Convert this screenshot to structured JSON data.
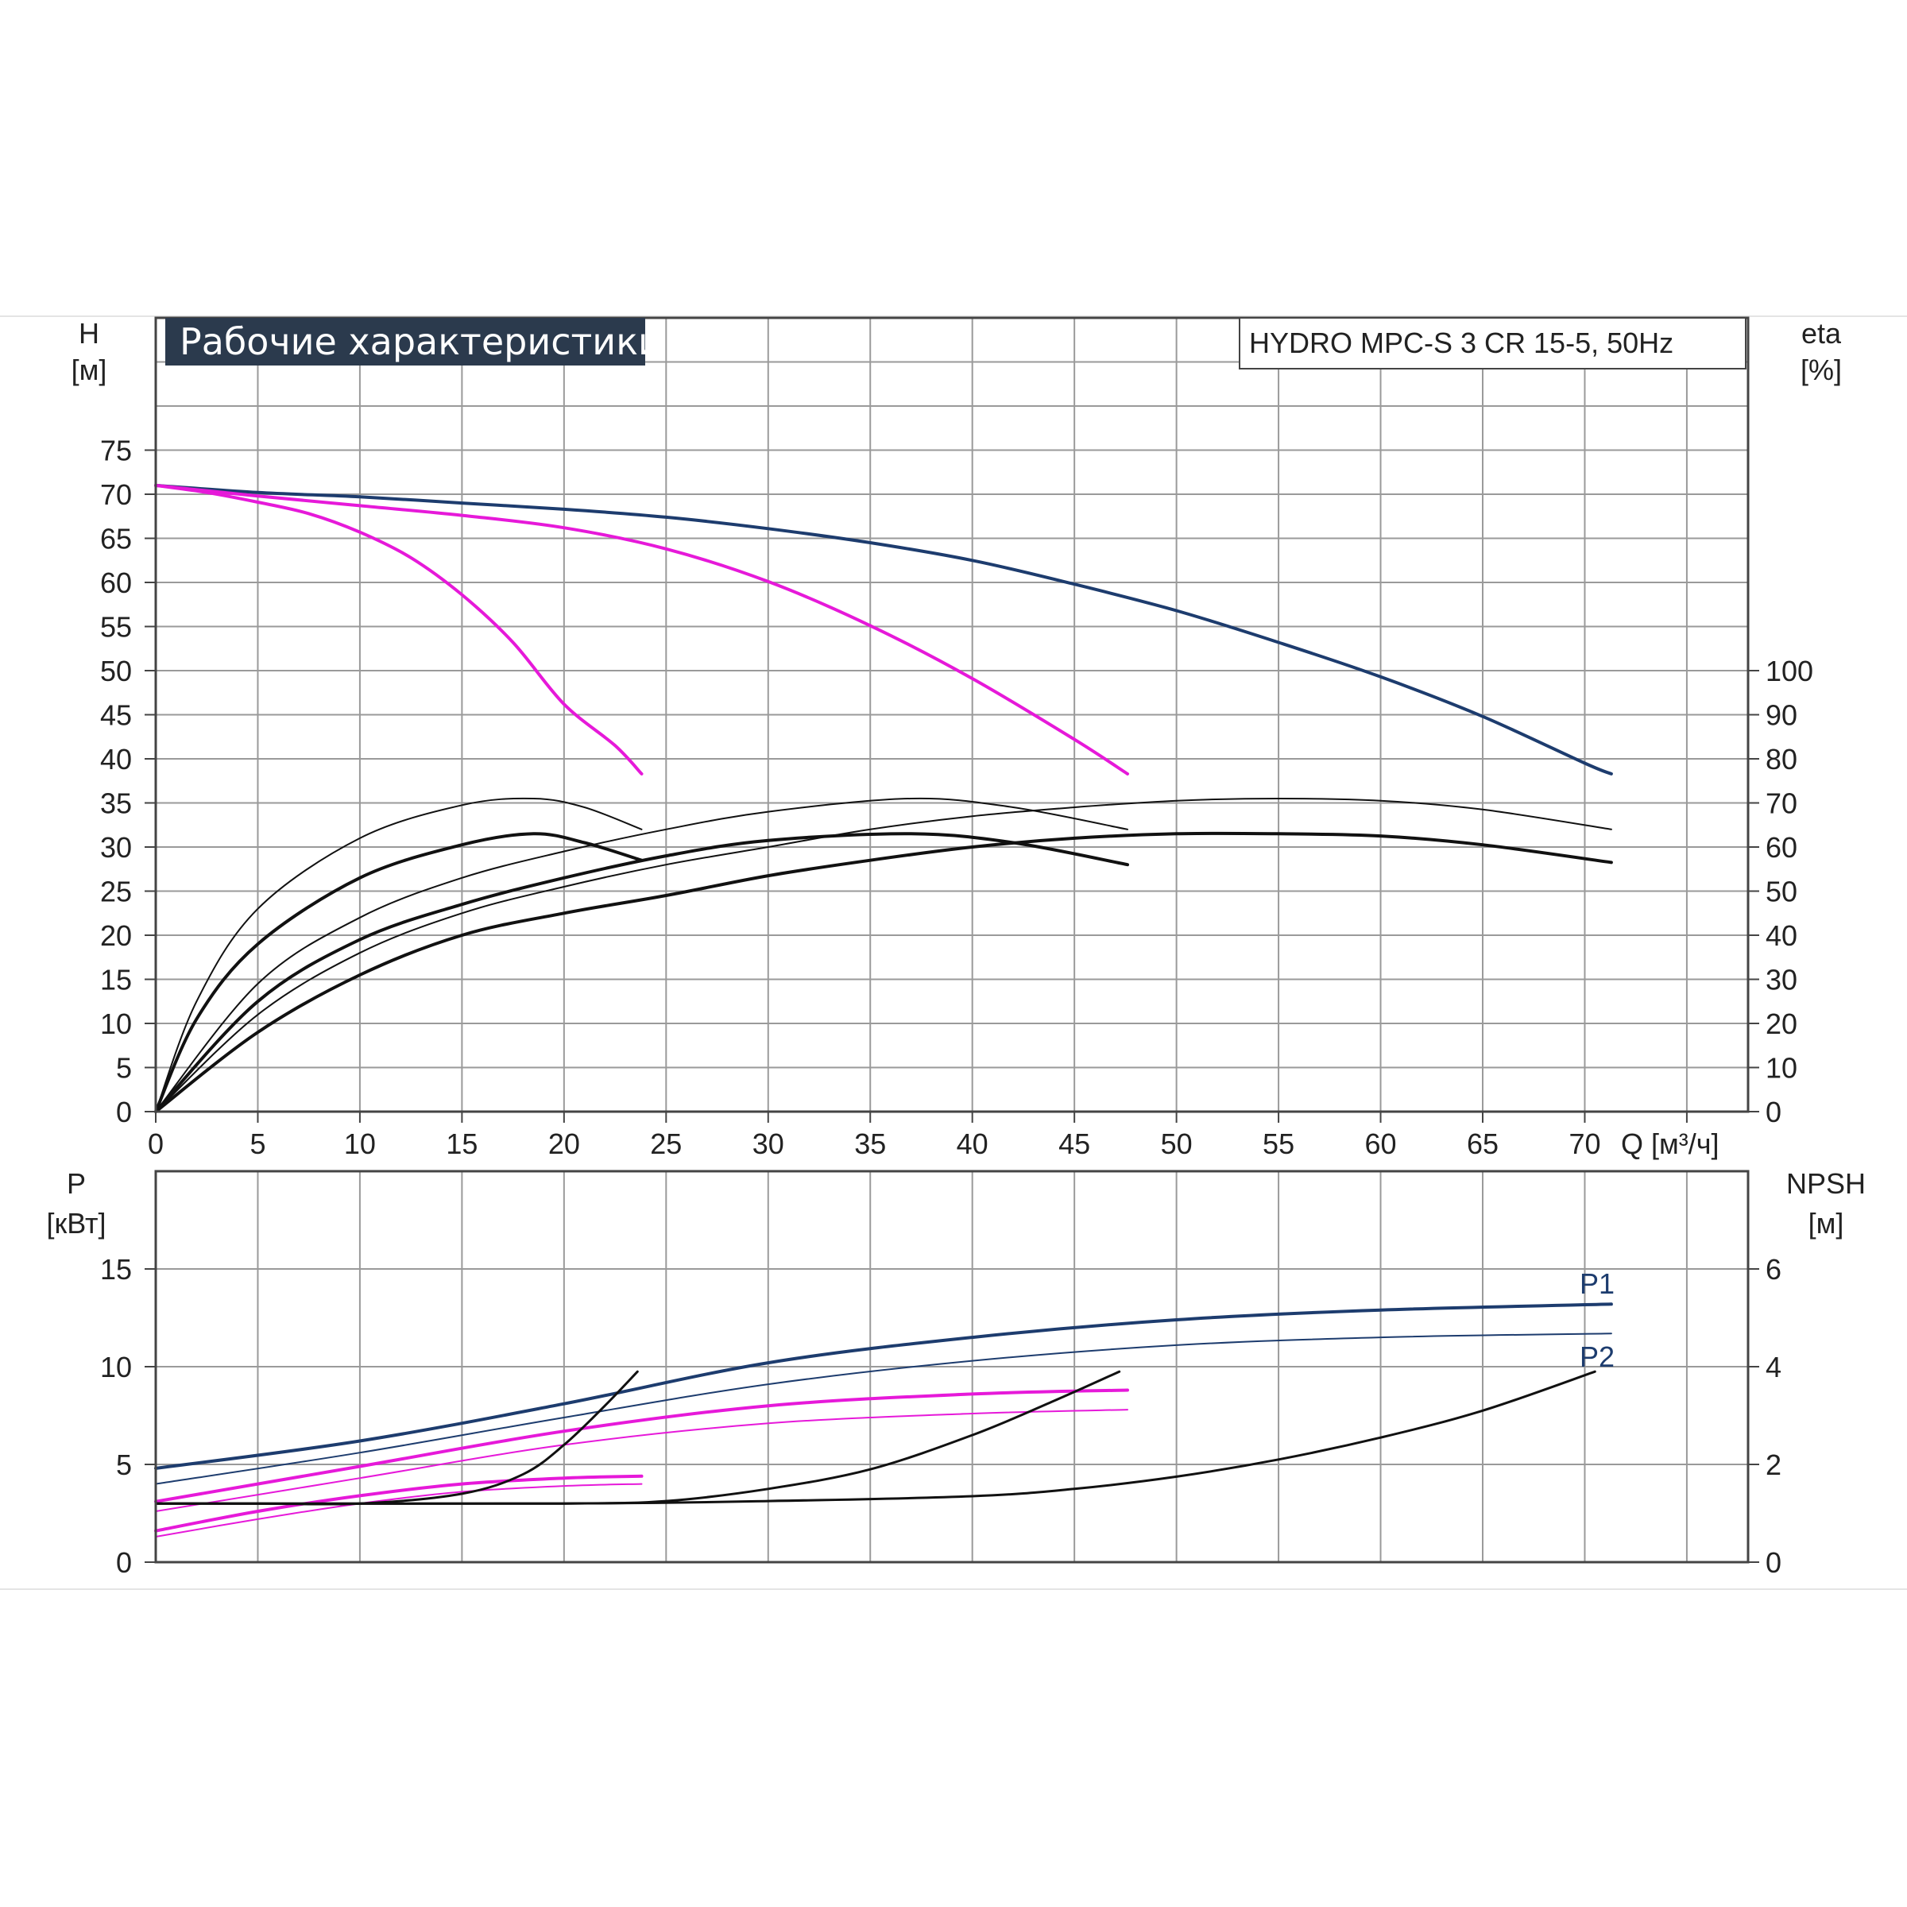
{
  "chart_data": {
    "type": "line",
    "title": "Рабочие характеристики",
    "model": "HYDRO MPC-S 3 CR 15-5, 50Hz",
    "colors": {
      "blue": "#1d3c6e",
      "magenta": "#e619d9",
      "black": "#111111",
      "grid": "#9a9a9a"
    },
    "x_axis": {
      "label": "Q [м³/ч]",
      "range": [
        0,
        78
      ],
      "ticks": [
        0,
        5,
        10,
        15,
        20,
        25,
        30,
        35,
        40,
        45,
        50,
        55,
        60,
        65,
        70
      ]
    },
    "top_panel": {
      "left_axis": {
        "label_line1": "H",
        "label_line2": "[м]",
        "range": [
          0,
          90
        ],
        "ticks": [
          0,
          5,
          10,
          15,
          20,
          25,
          30,
          35,
          40,
          45,
          50,
          55,
          60,
          65,
          70,
          75
        ]
      },
      "right_axis": {
        "label_line1": "eta",
        "label_line2": "[%]",
        "range": [
          0,
          180
        ],
        "ticks": [
          0,
          10,
          20,
          30,
          40,
          50,
          60,
          70,
          80,
          90,
          100
        ]
      },
      "series": [
        {
          "kind": "head",
          "color": "blue",
          "width": 4,
          "x": [
            0,
            5,
            10,
            15,
            20,
            25,
            30,
            35,
            40,
            45,
            50,
            55,
            60,
            65,
            70,
            71.3
          ],
          "y": [
            71,
            70.2,
            69.7,
            69,
            68.3,
            67.4,
            66.1,
            64.5,
            62.5,
            59.8,
            56.8,
            53.2,
            49.3,
            44.8,
            39.5,
            38.3
          ]
        },
        {
          "kind": "head",
          "color": "magenta",
          "width": 4,
          "x": [
            0,
            5,
            10,
            15,
            20,
            25,
            30,
            35,
            40,
            45,
            47.6
          ],
          "y": [
            71,
            69.8,
            68.7,
            67.6,
            66.2,
            63.8,
            60.1,
            55.1,
            49.1,
            42.2,
            38.3
          ]
        },
        {
          "kind": "head",
          "color": "magenta",
          "width": 4,
          "x": [
            0,
            2.5,
            5,
            7.5,
            10,
            12.5,
            15,
            17.5,
            20,
            22.5,
            23.8
          ],
          "y": [
            71,
            70.2,
            69.1,
            67.8,
            65.7,
            62.8,
            58.6,
            53.2,
            46.2,
            41.5,
            38.3
          ]
        },
        {
          "kind": "eta",
          "color": "black",
          "width": 2,
          "x": [
            0,
            2,
            5,
            10,
            15,
            18.5,
            21,
            23.8
          ],
          "y": [
            0,
            25,
            46,
            62,
            69.5,
            71,
            69,
            64
          ]
        },
        {
          "kind": "eta",
          "color": "black",
          "width": 4,
          "x": [
            0,
            2,
            5,
            10,
            15,
            18.5,
            21,
            23.8
          ],
          "y": [
            0,
            21,
            38,
            53,
            60.5,
            63,
            61,
            57
          ]
        },
        {
          "kind": "eta",
          "color": "black",
          "width": 2,
          "x": [
            0,
            5,
            10,
            15,
            20,
            25,
            30,
            37,
            42,
            47.6
          ],
          "y": [
            0,
            29,
            44,
            53,
            59,
            64,
            68,
            71,
            69,
            64
          ]
        },
        {
          "kind": "eta",
          "color": "black",
          "width": 4,
          "x": [
            0,
            5,
            10,
            15,
            20,
            25,
            30,
            37,
            42,
            47.6
          ],
          "y": [
            0,
            25,
            39,
            47,
            53,
            58,
            61.5,
            63,
            61,
            56
          ]
        },
        {
          "kind": "eta",
          "color": "black",
          "width": 2,
          "x": [
            0,
            5,
            10,
            15,
            20,
            25,
            30,
            35,
            40,
            45,
            50,
            55,
            60,
            65,
            71.3
          ],
          "y": [
            0,
            22,
            36,
            45,
            51,
            56,
            60,
            64,
            67,
            69,
            70.5,
            71,
            70.5,
            68.5,
            64
          ]
        },
        {
          "kind": "eta",
          "color": "black",
          "width": 4,
          "x": [
            0,
            5,
            10,
            15,
            20,
            25,
            30,
            35,
            40,
            45,
            50,
            55,
            60,
            65,
            71.3
          ],
          "y": [
            0,
            18,
            31,
            40,
            45,
            49,
            53.5,
            57,
            60,
            62,
            63,
            63,
            62.5,
            60.5,
            56.5
          ]
        }
      ]
    },
    "bottom_panel": {
      "left_axis": {
        "label_line1": "P",
        "label_line2": "[кВт]",
        "range": [
          0,
          20
        ],
        "ticks": [
          0,
          5,
          10,
          15
        ]
      },
      "right_axis": {
        "label_line1": "NPSH",
        "label_line2": "[м]",
        "range": [
          0,
          8
        ],
        "ticks": [
          0,
          2,
          4,
          6
        ]
      },
      "labels": [
        "P1",
        "P2"
      ],
      "series": [
        {
          "kind": "P1",
          "color": "blue",
          "width": 4,
          "x": [
            0,
            10,
            20,
            30,
            40,
            50,
            60,
            71.3
          ],
          "y": [
            4.8,
            6.2,
            8.1,
            10.2,
            11.5,
            12.4,
            12.9,
            13.2
          ]
        },
        {
          "kind": "P2",
          "color": "blue",
          "width": 2,
          "x": [
            0,
            10,
            20,
            30,
            40,
            50,
            60,
            71.3
          ],
          "y": [
            4.0,
            5.6,
            7.4,
            9.1,
            10.3,
            11.1,
            11.5,
            11.7
          ]
        },
        {
          "kind": "P1",
          "color": "magenta",
          "width": 4,
          "x": [
            0,
            10,
            20,
            30,
            40,
            47.6
          ],
          "y": [
            3.1,
            4.9,
            6.7,
            8.0,
            8.6,
            8.8
          ]
        },
        {
          "kind": "P2",
          "color": "magenta",
          "width": 2,
          "x": [
            0,
            10,
            20,
            30,
            40,
            47.6
          ],
          "y": [
            2.6,
            4.3,
            6.0,
            7.1,
            7.6,
            7.8
          ]
        },
        {
          "kind": "P1",
          "color": "magenta",
          "width": 4,
          "x": [
            0,
            5,
            10,
            15,
            20,
            23.8
          ],
          "y": [
            1.6,
            2.6,
            3.4,
            4.0,
            4.3,
            4.4
          ]
        },
        {
          "kind": "P2",
          "color": "magenta",
          "width": 2,
          "x": [
            0,
            5,
            10,
            15,
            20,
            23.8
          ],
          "y": [
            1.3,
            2.2,
            3.0,
            3.6,
            3.9,
            4.0
          ]
        },
        {
          "kind": "NPSH",
          "color": "black",
          "width": 3,
          "x": [
            0,
            5,
            10,
            15,
            18,
            20,
            22,
            23.6
          ],
          "y": [
            1.2,
            1.2,
            1.2,
            1.4,
            1.8,
            2.4,
            3.2,
            3.9
          ]
        },
        {
          "kind": "NPSH",
          "color": "black",
          "width": 3,
          "x": [
            0,
            10,
            20,
            25,
            30,
            35,
            40,
            44,
            47.2
          ],
          "y": [
            1.2,
            1.2,
            1.2,
            1.25,
            1.5,
            1.9,
            2.6,
            3.3,
            3.9
          ]
        },
        {
          "kind": "NPSH",
          "color": "black",
          "width": 3,
          "x": [
            0,
            20,
            30,
            40,
            45,
            50,
            55,
            60,
            65,
            70.5
          ],
          "y": [
            1.2,
            1.2,
            1.25,
            1.35,
            1.5,
            1.75,
            2.1,
            2.55,
            3.1,
            3.9
          ]
        }
      ]
    }
  }
}
